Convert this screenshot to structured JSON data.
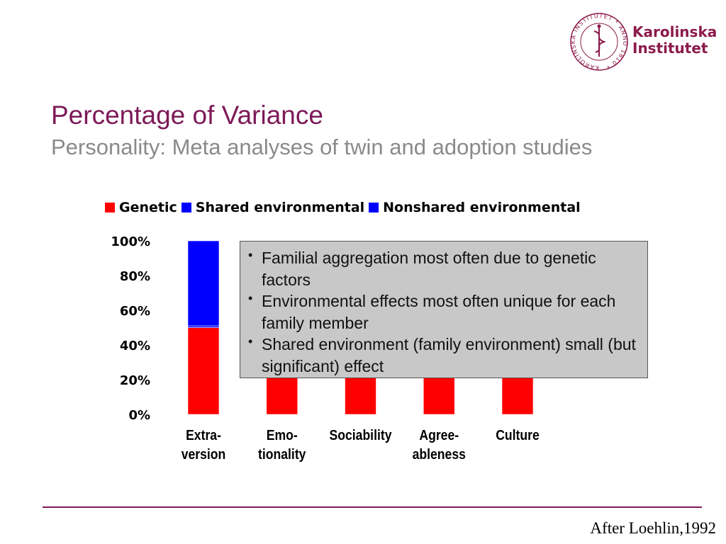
{
  "logo": {
    "ring_text": "KAROLINSKA INSTITUTET * ANNO 1810 *",
    "line1": "Karolinska",
    "line2": "Institutet",
    "color": "#8b1a4a"
  },
  "title": "Percentage of Variance",
  "subtitle": "Personality: Meta analyses of twin and adoption studies",
  "callout": {
    "bullets": [
      "Familial aggregation most often due to genetic factors",
      "Environmental effects most often unique for each family member",
      "Shared environment (family environment) small (but significant) effect"
    ]
  },
  "citation": "After Loehlin,1992",
  "chart_data": {
    "type": "bar",
    "stacked": true,
    "categories": [
      [
        "Extra-",
        "version"
      ],
      [
        "Emo-",
        "tionality"
      ],
      [
        "Sociability"
      ],
      [
        "Agree-",
        "ableness"
      ],
      [
        "Culture"
      ]
    ],
    "series": [
      {
        "name": "Genetic",
        "color": "#ff0000",
        "values": [
          50,
          50,
          50,
          50,
          50
        ]
      },
      {
        "name": "Shared environmental",
        "color": "#0000ff",
        "values": [
          1,
          null,
          null,
          null,
          null
        ]
      },
      {
        "name": "Nonshared environmental",
        "color": "#0000ff",
        "values": [
          49,
          null,
          null,
          null,
          null
        ]
      }
    ],
    "yticks": [
      "100%",
      "80%",
      "60%",
      "40%",
      "20%",
      "0%"
    ],
    "ylim": [
      0,
      100
    ],
    "grid": false,
    "legend_position": "top"
  }
}
